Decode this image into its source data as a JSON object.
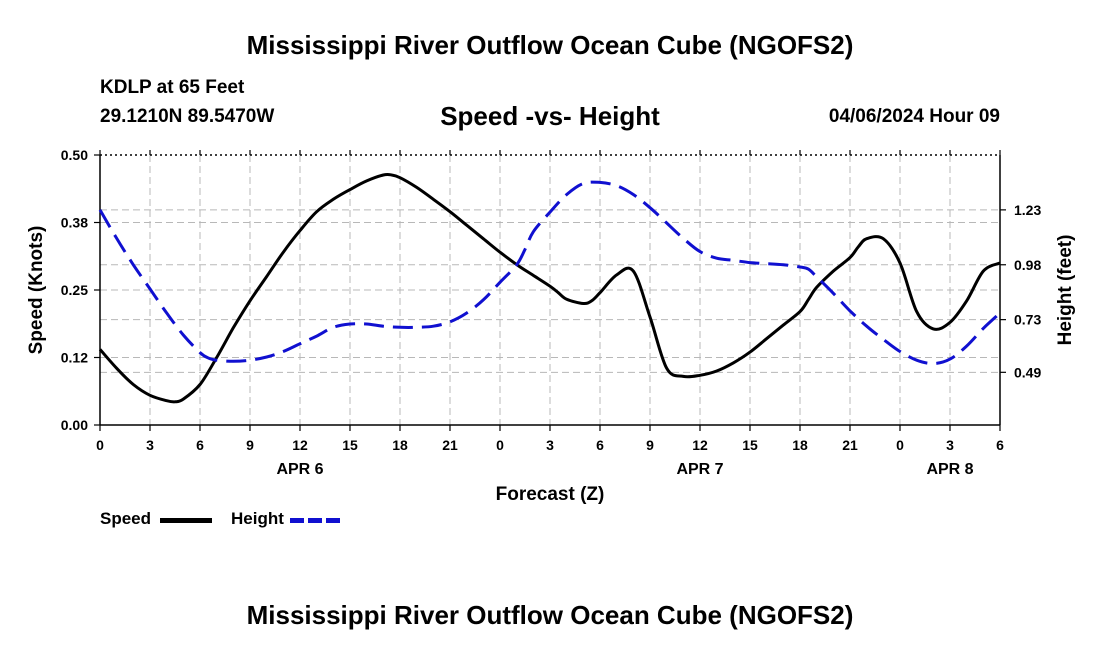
{
  "header": {
    "main_title": "Mississippi River Outflow Ocean Cube (NGOFS2)",
    "station_name": "KDLP at 65 Feet",
    "station_coords": "29.1210N  89.5470W",
    "subtitle": "Speed -vs- Height",
    "datetime": "04/06/2024 Hour 09",
    "footer_title": "Mississippi River Outflow Ocean Cube (NGOFS2)"
  },
  "legend": {
    "speed_label": "Speed",
    "height_label": "Height"
  },
  "colors": {
    "speed": "#000000",
    "height": "#1010d0",
    "grid": "#b8b8b8"
  },
  "chart_data": {
    "type": "line",
    "title": "Speed -vs- Height",
    "xlabel": "Forecast (Z)",
    "ylabel": "Speed (Knots)",
    "y2label": "Height (feet)",
    "xlim": [
      0,
      54
    ],
    "ylim": [
      0,
      0.5
    ],
    "y2lim": [
      0.25,
      1.48
    ],
    "x_ticks": [
      0,
      3,
      6,
      9,
      12,
      15,
      18,
      21,
      24,
      27,
      30,
      33,
      36,
      39,
      42,
      45,
      48,
      51,
      54
    ],
    "x_tick_labels": [
      "0",
      "3",
      "6",
      "9",
      "12",
      "15",
      "18",
      "21",
      "0",
      "3",
      "6",
      "9",
      "12",
      "15",
      "18",
      "21",
      "0",
      "3",
      "6"
    ],
    "y_ticks": [
      0,
      0.125,
      0.25,
      0.375,
      0.5
    ],
    "y_tick_labels": [
      "0.00",
      "0.12",
      "0.25",
      "0.38",
      "0.50"
    ],
    "y2_ticks": [
      0.49,
      0.73,
      0.98,
      1.23
    ],
    "y2_tick_labels": [
      "0.49",
      "0.73",
      "0.98",
      "1.23"
    ],
    "date_labels": [
      {
        "x": 12,
        "label": "APR 6"
      },
      {
        "x": 36,
        "label": "APR 7"
      },
      {
        "x": 51,
        "label": "APR 8"
      }
    ],
    "grid": true,
    "series": [
      {
        "name": "Speed",
        "axis": "left",
        "style": "solid",
        "x": [
          0,
          1,
          2,
          3,
          4,
          4.5,
          5,
          6,
          7,
          8,
          9,
          10,
          11,
          12,
          13,
          14,
          15,
          16,
          17,
          17.5,
          18,
          19,
          20,
          21,
          22,
          23,
          24,
          25,
          26,
          27,
          27.5,
          28,
          29,
          29.5,
          30,
          31,
          32,
          33,
          34,
          35,
          36,
          37,
          38,
          39,
          40,
          41,
          42,
          42.5,
          43,
          44,
          45,
          45.5,
          46,
          47,
          48,
          49,
          50,
          51,
          52,
          53,
          54
        ],
        "values": [
          0.14,
          0.105,
          0.075,
          0.055,
          0.045,
          0.043,
          0.048,
          0.075,
          0.125,
          0.18,
          0.23,
          0.275,
          0.32,
          0.36,
          0.395,
          0.418,
          0.436,
          0.452,
          0.463,
          0.463,
          0.458,
          0.44,
          0.418,
          0.395,
          0.37,
          0.345,
          0.32,
          0.297,
          0.277,
          0.257,
          0.245,
          0.233,
          0.225,
          0.23,
          0.245,
          0.278,
          0.285,
          0.2,
          0.105,
          0.09,
          0.092,
          0.1,
          0.115,
          0.135,
          0.16,
          0.185,
          0.21,
          0.232,
          0.255,
          0.285,
          0.31,
          0.33,
          0.345,
          0.345,
          0.3,
          0.21,
          0.178,
          0.19,
          0.23,
          0.285,
          0.3
        ]
      },
      {
        "name": "Height",
        "axis": "right",
        "style": "dashed",
        "x": [
          0,
          1,
          2,
          3,
          4,
          5,
          6,
          6.5,
          7,
          8,
          9,
          10,
          11,
          12,
          13,
          14,
          15,
          16,
          17,
          18,
          19,
          20,
          21,
          22,
          23,
          24,
          25,
          25.5,
          26,
          27,
          28,
          29,
          30,
          31,
          32,
          33,
          34,
          35,
          36,
          37,
          38,
          39,
          40,
          41,
          42,
          42.5,
          43,
          44,
          45,
          46,
          47,
          48,
          49,
          50,
          51,
          52,
          53,
          54
        ],
        "values": [
          1.23,
          1.1,
          0.98,
          0.87,
          0.76,
          0.66,
          0.58,
          0.555,
          0.545,
          0.54,
          0.545,
          0.56,
          0.585,
          0.62,
          0.655,
          0.695,
          0.71,
          0.71,
          0.7,
          0.695,
          0.695,
          0.7,
          0.72,
          0.76,
          0.82,
          0.9,
          0.98,
          1.05,
          1.13,
          1.22,
          1.3,
          1.35,
          1.355,
          1.34,
          1.3,
          1.24,
          1.17,
          1.1,
          1.04,
          1.01,
          1.0,
          0.99,
          0.985,
          0.98,
          0.97,
          0.96,
          0.925,
          0.85,
          0.77,
          0.7,
          0.64,
          0.585,
          0.545,
          0.53,
          0.55,
          0.61,
          0.69,
          0.76
        ]
      }
    ]
  }
}
